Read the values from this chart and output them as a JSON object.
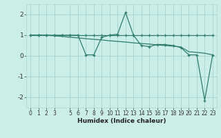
{
  "x": [
    0,
    1,
    2,
    3,
    4,
    5,
    6,
    7,
    8,
    9,
    10,
    11,
    12,
    13,
    14,
    15,
    16,
    17,
    18,
    19,
    20,
    21,
    22,
    23
  ],
  "y_flat": [
    1,
    1,
    1,
    1,
    1,
    1,
    1,
    1,
    1,
    1,
    1,
    1,
    1,
    1,
    1,
    1,
    1,
    1,
    1,
    1,
    1,
    1,
    1,
    1
  ],
  "y_spiky": [
    1,
    1,
    1,
    1,
    1,
    1,
    1,
    0.05,
    0.05,
    0.9,
    1.0,
    1.05,
    2.1,
    1.0,
    0.5,
    0.45,
    0.55,
    0.55,
    0.5,
    0.4,
    0.05,
    0.05,
    -2.15,
    0.05
  ],
  "y_trend": [
    1.0,
    1.0,
    1.0,
    0.97,
    0.94,
    0.9,
    0.87,
    0.83,
    0.8,
    0.77,
    0.73,
    0.7,
    0.67,
    0.63,
    0.6,
    0.57,
    0.53,
    0.5,
    0.47,
    0.43,
    0.2,
    0.17,
    0.13,
    0.05
  ],
  "line_color": "#2e7c6e",
  "bg_color": "#cceee8",
  "grid_color_major": "#a8d8d0",
  "grid_color_minor": "#b8e4de",
  "xlabel": "Humidex (Indice chaleur)",
  "ylim": [
    -2.5,
    2.5
  ],
  "xlim": [
    -0.5,
    23.5
  ],
  "yticks": [
    -2,
    -1,
    0,
    1,
    2
  ],
  "xticks": [
    0,
    1,
    2,
    3,
    5,
    6,
    7,
    8,
    9,
    10,
    11,
    12,
    13,
    14,
    15,
    16,
    17,
    18,
    19,
    20,
    21,
    22,
    23
  ]
}
